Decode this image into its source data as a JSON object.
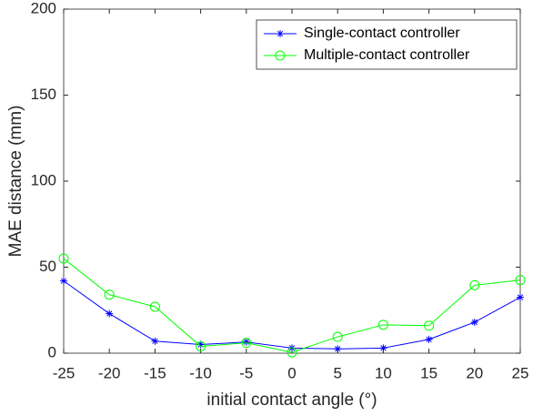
{
  "chart_data": {
    "type": "line",
    "x_label": "initial contact angle (°)",
    "y_label": "MAE distance (mm)",
    "x": [
      -25,
      -20,
      -15,
      -10,
      -5,
      0,
      5,
      10,
      15,
      20,
      25
    ],
    "series": [
      {
        "name": "Single-contact controller",
        "color": "#0000ff",
        "marker": "*",
        "values": [
          42,
          23,
          7,
          5,
          6.5,
          3,
          2.5,
          3,
          8,
          18,
          32.5
        ]
      },
      {
        "name": "Multiple-contact controller",
        "color": "#00ff00",
        "marker": "o",
        "values": [
          55,
          34,
          27,
          4,
          6,
          0.5,
          9.5,
          16.5,
          16,
          39.5,
          42.5
        ]
      }
    ],
    "xlim": [
      -25,
      25
    ],
    "xticks": [
      -25,
      -20,
      -15,
      -10,
      -5,
      0,
      5,
      10,
      15,
      20,
      25
    ],
    "ylim": [
      0,
      200
    ],
    "yticks": [
      0,
      50,
      100,
      150,
      200
    ],
    "legend": "upper right"
  }
}
